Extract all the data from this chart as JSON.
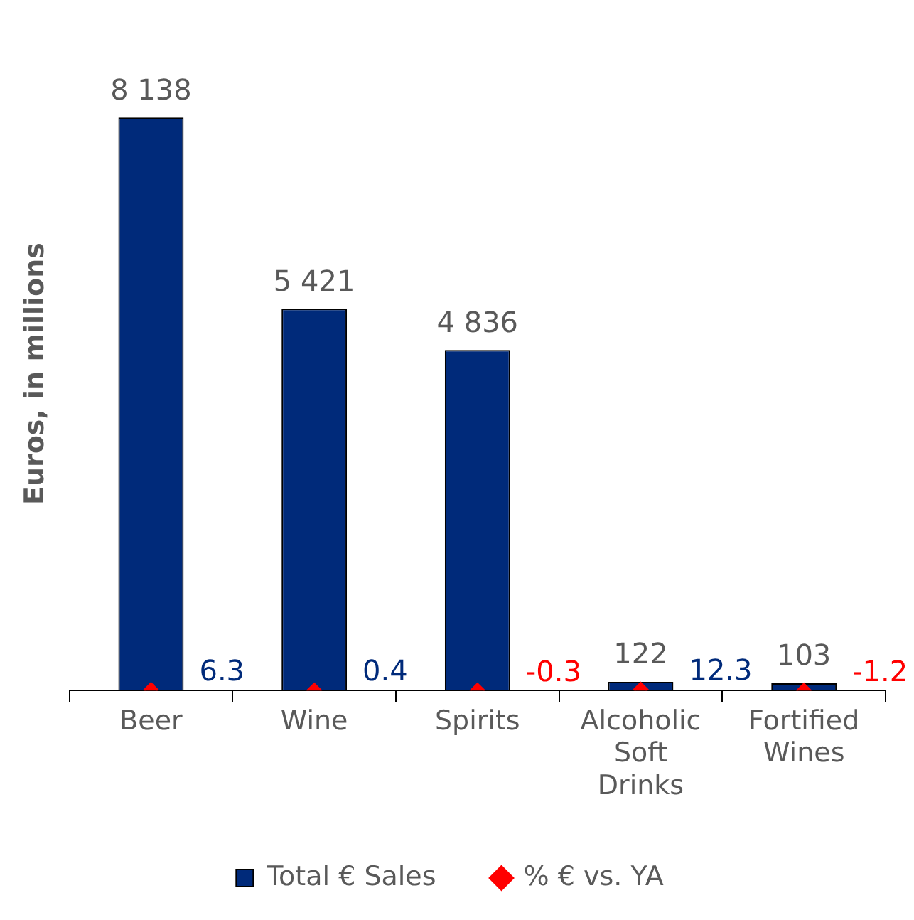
{
  "chart_data": {
    "type": "bar",
    "ylabel": "Euros, in millions",
    "categories": [
      "Beer",
      "Wine",
      "Spirits",
      "Alcoholic Soft Drinks",
      "Fortified Wines"
    ],
    "series": [
      {
        "name": "Total € Sales",
        "color": "#002a7a",
        "values": [
          8138,
          5421,
          4836,
          122,
          103
        ],
        "value_labels": [
          "8 138",
          "5 421",
          "4 836",
          "122",
          "103"
        ]
      },
      {
        "name": "% € vs. YA",
        "type": "scatter",
        "marker": "diamond",
        "color": "#ff0000",
        "values": [
          6.3,
          0.4,
          -0.3,
          12.3,
          -1.2
        ],
        "value_labels": [
          "6.3",
          "0.4",
          "-0.3",
          "12.3",
          "-1.2"
        ]
      }
    ],
    "tick_labels": "x",
    "legend": "bottom"
  }
}
